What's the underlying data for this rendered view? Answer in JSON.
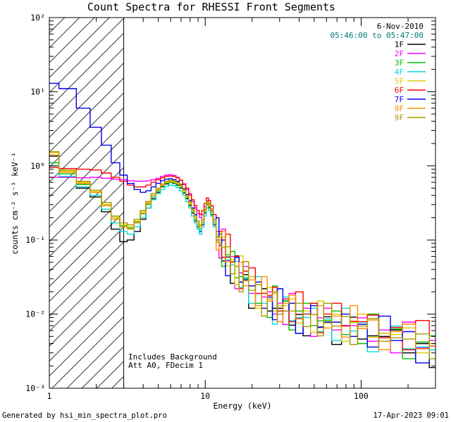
{
  "title": "Count Spectra for RHESSI Front Segments",
  "annotations": {
    "date": "6-Nov-2010",
    "time_range": "05:46:00 to 05:47:00",
    "note_line1": "Includes Background",
    "note_line2": "Att A0, FDecim 1"
  },
  "footer": {
    "left": "Generated by hsi_min_spectra_plot.pro",
    "right": "17-Apr-2023 09:01"
  },
  "colors": {
    "time_text": "#007a7a",
    "frame": "#000000",
    "background": "#ffffff"
  },
  "chart_data": {
    "type": "line",
    "style": "histogram-step",
    "title": "Count Spectra for RHESSI Front Segments",
    "xlabel": "Energy (keV)",
    "ylabel": "counts cm⁻² s⁻¹ keV⁻¹",
    "xscale": "log",
    "yscale": "log",
    "xlim": [
      1,
      300
    ],
    "ylim": [
      0.001,
      100
    ],
    "grid": false,
    "legend_position": "top-right",
    "hatched_region": {
      "xmin": 1,
      "xmax": 3
    },
    "x_ticks": [
      {
        "v": 1,
        "label": "1"
      },
      {
        "v": 10,
        "label": "10"
      },
      {
        "v": 100,
        "label": "100"
      }
    ],
    "y_ticks": [
      {
        "v": 0.001,
        "label": "10⁻³"
      },
      {
        "v": 0.01,
        "label": "10⁻²"
      },
      {
        "v": 0.1,
        "label": "10⁻¹"
      },
      {
        "v": 1,
        "label": "10⁰"
      },
      {
        "v": 10,
        "label": "10¹"
      },
      {
        "v": 100,
        "label": "10²"
      }
    ],
    "x": [
      1.0,
      1.33,
      1.67,
      2.0,
      2.33,
      2.67,
      3.0,
      3.33,
      3.67,
      4.0,
      4.33,
      4.67,
      5.0,
      5.33,
      5.67,
      6.0,
      6.33,
      6.67,
      7.0,
      7.33,
      7.67,
      8.0,
      8.33,
      8.67,
      9.0,
      9.33,
      9.67,
      10.0,
      10.33,
      10.67,
      11.0,
      11.5,
      12.0,
      12.5,
      13.0,
      14.0,
      15.0,
      16.0,
      17.0,
      18.0,
      20.0,
      22.0,
      24.0,
      26.0,
      28.0,
      30.0,
      33.0,
      36.0,
      40.0,
      45.0,
      50.0,
      55.0,
      60.0,
      70.0,
      80.0,
      90.0,
      100.0,
      120.0,
      140.0,
      170.0,
      200.0,
      250.0,
      300.0
    ],
    "series": [
      {
        "name": "1F",
        "color": "#000000",
        "y": [
          1.35,
          0.7,
          0.5,
          0.38,
          0.24,
          0.14,
          0.095,
          0.1,
          0.13,
          0.19,
          0.27,
          0.36,
          0.44,
          0.52,
          0.57,
          0.6,
          0.58,
          0.55,
          0.5,
          0.43,
          0.36,
          0.29,
          0.23,
          0.18,
          0.15,
          0.13,
          0.16,
          0.23,
          0.3,
          0.27,
          0.22,
          0.16,
          0.11,
          0.12,
          0.052,
          0.059,
          0.026,
          0.061,
          0.027,
          0.034,
          0.012,
          0.019,
          0.022,
          0.011,
          0.012,
          0.012,
          0.015,
          0.0071,
          0.0099,
          0.0051,
          0.014,
          0.0067,
          0.0092,
          0.0039,
          0.007,
          0.0091,
          0.0046,
          0.0051,
          0.005,
          0.0061,
          0.003,
          0.004,
          0.0019
        ]
      },
      {
        "name": "2F",
        "color": "#ff00ff",
        "y": [
          0.7,
          0.7,
          0.69,
          0.7,
          0.68,
          0.66,
          0.65,
          0.63,
          0.62,
          0.62,
          0.63,
          0.65,
          0.68,
          0.72,
          0.75,
          0.76,
          0.74,
          0.7,
          0.64,
          0.56,
          0.48,
          0.4,
          0.33,
          0.27,
          0.23,
          0.2,
          0.22,
          0.28,
          0.34,
          0.31,
          0.26,
          0.19,
          0.13,
          0.057,
          0.14,
          0.053,
          0.06,
          0.022,
          0.036,
          0.044,
          0.019,
          0.019,
          0.017,
          0.02,
          0.01,
          0.014,
          0.0072,
          0.019,
          0.0088,
          0.012,
          0.005,
          0.0089,
          0.012,
          0.0061,
          0.007,
          0.007,
          0.0089,
          0.0043,
          0.0061,
          0.003,
          0.0078,
          0.0035,
          0.0044
        ]
      },
      {
        "name": "3F",
        "color": "#00c000",
        "y": [
          1.1,
          0.78,
          0.56,
          0.44,
          0.3,
          0.2,
          0.155,
          0.145,
          0.175,
          0.225,
          0.3,
          0.38,
          0.46,
          0.53,
          0.58,
          0.6,
          0.59,
          0.56,
          0.51,
          0.44,
          0.37,
          0.3,
          0.24,
          0.19,
          0.16,
          0.14,
          0.17,
          0.24,
          0.3,
          0.28,
          0.24,
          0.17,
          0.11,
          0.12,
          0.044,
          0.063,
          0.07,
          0.031,
          0.032,
          0.03,
          0.032,
          0.014,
          0.019,
          0.009,
          0.024,
          0.011,
          0.015,
          0.0061,
          0.011,
          0.014,
          0.007,
          0.0081,
          0.0082,
          0.011,
          0.0053,
          0.0077,
          0.004,
          0.01,
          0.0048,
          0.0063,
          0.0025,
          0.0042,
          0.0051
        ]
      },
      {
        "name": "4F",
        "color": "#00dcdc",
        "y": [
          1.0,
          0.72,
          0.52,
          0.4,
          0.26,
          0.17,
          0.13,
          0.12,
          0.15,
          0.2,
          0.27,
          0.35,
          0.42,
          0.48,
          0.53,
          0.55,
          0.54,
          0.51,
          0.46,
          0.4,
          0.33,
          0.27,
          0.21,
          0.17,
          0.14,
          0.12,
          0.15,
          0.21,
          0.27,
          0.25,
          0.21,
          0.15,
          0.12,
          0.13,
          0.059,
          0.054,
          0.046,
          0.051,
          0.023,
          0.031,
          0.014,
          0.032,
          0.014,
          0.018,
          0.0073,
          0.013,
          0.017,
          0.0082,
          0.009,
          0.009,
          0.012,
          0.0058,
          0.0086,
          0.0044,
          0.012,
          0.0059,
          0.0078,
          0.0031,
          0.0055,
          0.0069,
          0.0034,
          0.0036,
          0.0033
        ]
      },
      {
        "name": "5F",
        "color": "#e0cc00",
        "y": [
          1.5,
          0.85,
          0.6,
          0.45,
          0.3,
          0.2,
          0.16,
          0.15,
          0.18,
          0.24,
          0.32,
          0.4,
          0.48,
          0.55,
          0.6,
          0.62,
          0.61,
          0.58,
          0.53,
          0.46,
          0.38,
          0.31,
          0.25,
          0.2,
          0.17,
          0.15,
          0.18,
          0.25,
          0.31,
          0.29,
          0.25,
          0.18,
          0.12,
          0.1,
          0.11,
          0.045,
          0.055,
          0.025,
          0.061,
          0.028,
          0.032,
          0.012,
          0.019,
          0.023,
          0.011,
          0.013,
          0.013,
          0.016,
          0.0076,
          0.011,
          0.0057,
          0.015,
          0.0076,
          0.01,
          0.0043,
          0.0077,
          0.01,
          0.0049,
          0.0055,
          0.0053,
          0.0065,
          0.003,
          0.004
        ]
      },
      {
        "name": "6F",
        "color": "#ff0000",
        "y": [
          0.95,
          0.92,
          0.9,
          0.88,
          0.8,
          0.7,
          0.62,
          0.55,
          0.52,
          0.52,
          0.55,
          0.6,
          0.65,
          0.69,
          0.72,
          0.73,
          0.72,
          0.69,
          0.64,
          0.57,
          0.5,
          0.42,
          0.35,
          0.29,
          0.25,
          0.22,
          0.25,
          0.31,
          0.37,
          0.34,
          0.29,
          0.22,
          0.1,
          0.13,
          0.058,
          0.12,
          0.051,
          0.06,
          0.022,
          0.038,
          0.042,
          0.019,
          0.019,
          0.018,
          0.023,
          0.011,
          0.016,
          0.0079,
          0.02,
          0.01,
          0.014,
          0.0056,
          0.01,
          0.014,
          0.0069,
          0.008,
          0.0079,
          0.0097,
          0.0048,
          0.0066,
          0.0033,
          0.0082,
          0.0037
        ]
      },
      {
        "name": "7F",
        "color": "#0000ee",
        "y": [
          13.0,
          11.0,
          6.0,
          3.3,
          1.9,
          1.1,
          0.75,
          0.58,
          0.48,
          0.44,
          0.46,
          0.52,
          0.58,
          0.63,
          0.66,
          0.67,
          0.65,
          0.62,
          0.56,
          0.49,
          0.41,
          0.34,
          0.27,
          0.22,
          0.18,
          0.16,
          0.19,
          0.26,
          0.32,
          0.3,
          0.25,
          0.18,
          0.2,
          0.084,
          0.1,
          0.033,
          0.05,
          0.058,
          0.027,
          0.029,
          0.024,
          0.027,
          0.012,
          0.017,
          0.0084,
          0.022,
          0.011,
          0.014,
          0.0055,
          0.01,
          0.013,
          0.0066,
          0.0078,
          0.0078,
          0.01,
          0.005,
          0.0073,
          0.0036,
          0.0094,
          0.0044,
          0.0058,
          0.0022,
          0.0037
        ]
      },
      {
        "name": "8F",
        "color": "#ff9000",
        "y": [
          1.4,
          0.82,
          0.58,
          0.44,
          0.29,
          0.19,
          0.15,
          0.14,
          0.17,
          0.23,
          0.31,
          0.4,
          0.48,
          0.55,
          0.61,
          0.63,
          0.62,
          0.59,
          0.54,
          0.47,
          0.39,
          0.32,
          0.26,
          0.21,
          0.17,
          0.15,
          0.18,
          0.25,
          0.32,
          0.3,
          0.25,
          0.18,
          0.073,
          0.11,
          0.13,
          0.051,
          0.05,
          0.044,
          0.05,
          0.024,
          0.029,
          0.013,
          0.032,
          0.015,
          0.019,
          0.0079,
          0.014,
          0.018,
          0.0086,
          0.0099,
          0.0099,
          0.013,
          0.0065,
          0.0094,
          0.0049,
          0.013,
          0.0064,
          0.0083,
          0.0033,
          0.0058,
          0.0073,
          0.0034,
          0.0037
        ]
      },
      {
        "name": "9F",
        "color": "#a89800",
        "y": [
          1.55,
          0.88,
          0.62,
          0.47,
          0.32,
          0.21,
          0.17,
          0.16,
          0.19,
          0.25,
          0.33,
          0.42,
          0.5,
          0.57,
          0.62,
          0.64,
          0.63,
          0.6,
          0.55,
          0.48,
          0.4,
          0.33,
          0.26,
          0.21,
          0.18,
          0.16,
          0.19,
          0.26,
          0.33,
          0.31,
          0.26,
          0.19,
          0.094,
          0.09,
          0.08,
          0.081,
          0.035,
          0.044,
          0.02,
          0.051,
          0.021,
          0.025,
          0.0094,
          0.016,
          0.02,
          0.01,
          0.011,
          0.011,
          0.014,
          0.0068,
          0.0099,
          0.0051,
          0.014,
          0.0069,
          0.0093,
          0.0039,
          0.0069,
          0.0087,
          0.0043,
          0.0048,
          0.0046,
          0.0054,
          0.0025
        ]
      }
    ]
  }
}
